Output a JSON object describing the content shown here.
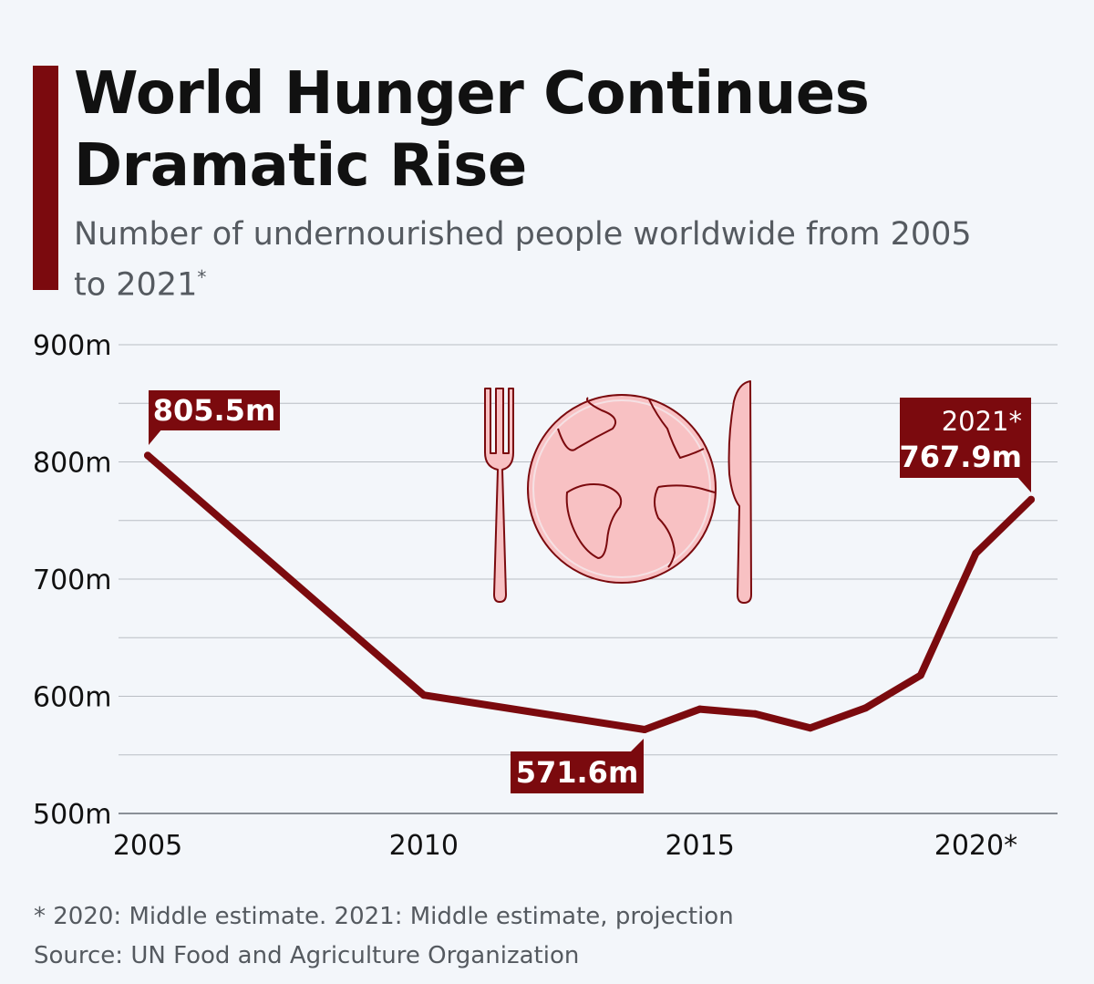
{
  "header": {
    "title": "World Hunger Continues Dramatic Rise",
    "subtitle": "Number of undernourished people worldwide from 2005 to 2021",
    "subtitle_mark": "*"
  },
  "colors": {
    "accent": "#7b0a0e",
    "line": "#7b0a0e",
    "grid": "#b9bec4",
    "background": "#f3f6fa",
    "illustration_fill": "#f8c1c3"
  },
  "illustration": {
    "icons": [
      "fork-icon",
      "globe-plate-icon",
      "knife-icon"
    ]
  },
  "chart_data": {
    "type": "line",
    "title": "World Hunger Continues Dramatic Rise",
    "ylim": [
      500,
      900
    ],
    "y_ticks": [
      500,
      600,
      700,
      800,
      900
    ],
    "y_tick_labels": [
      "500m",
      "600m",
      "700m",
      "800m",
      "900m"
    ],
    "xlim": [
      2005,
      2021
    ],
    "x_ticks": [
      2005,
      2010,
      2015,
      2020
    ],
    "x_tick_labels": [
      "2005",
      "2010",
      "2015",
      "2020*"
    ],
    "grid": true,
    "series": [
      {
        "x": [
          2005,
          2010,
          2014,
          2015,
          2016,
          2017,
          2018,
          2019,
          2020,
          2021
        ],
        "values": [
          805.5,
          601.0,
          571.6,
          589.0,
          585.0,
          573.0,
          590.0,
          618.0,
          722.0,
          767.9
        ]
      }
    ],
    "annotations": [
      {
        "x": 2005,
        "y": 805.5,
        "label": "805.5m"
      },
      {
        "x": 2014,
        "y": 571.6,
        "label": "571.6m"
      },
      {
        "x": 2021,
        "y": 767.9,
        "year_label": "2021*",
        "label": "767.9m"
      }
    ]
  },
  "footer": {
    "footnote": "* 2020: Middle estimate. 2021: Middle estimate, projection",
    "source": "Source: UN Food and Agriculture Organization"
  }
}
